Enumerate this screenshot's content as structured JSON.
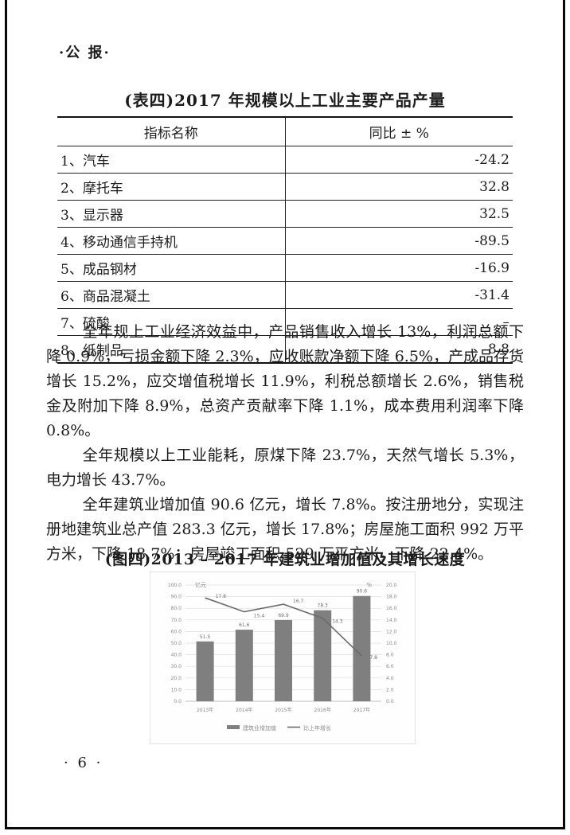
{
  "page": {
    "masthead": "·公 报·",
    "page_number": "· 6 ·"
  },
  "table": {
    "title": "(表四)2017 年规模以上工业主要产品产量",
    "columns": [
      "指标名称",
      "同比 ± %"
    ],
    "rows": [
      {
        "name": "1、汽车",
        "value": "-24.2"
      },
      {
        "name": "2、摩托车",
        "value": "32.8"
      },
      {
        "name": "3、显示器",
        "value": "32.5"
      },
      {
        "name": "4、移动通信手持机",
        "value": "-89.5"
      },
      {
        "name": "5、成品钢材",
        "value": "-16.9"
      },
      {
        "name": "6、商品混凝土",
        "value": "-31.4"
      },
      {
        "name": "7、硫酸",
        "value": "–"
      },
      {
        "name": "8、纸制品",
        "value": "8.8"
      }
    ]
  },
  "paragraphs": [
    "全年规上工业经济效益中，产品销售收入增长 13%，利润总额下降 0.9%，亏损金额下降 2.3%，应收账款净额下降 6.5%，产成品存货增长 15.2%，应交增值税增长 11.9%，利税总额增长 2.6%，销售税金及附加下降 8.9%，总资产贡献率下降 1.1%，成本费用利润率下降 0.8%。",
    "全年规模以上工业能耗，原煤下降 23.7%，天然气增长 5.3%，电力增长 43.7%。",
    "全年建筑业增加值 90.6 亿元，增长 7.8%。按注册地分，实现注册地建筑业总产值 283.3 亿元，增长 17.8%；房屋施工面积 992 万平方米，下降 18.7%；房屋竣工面积 529 万平方米，下降 22.4%。"
  ],
  "figure": {
    "caption": "(图四)2013 – 2017 年建筑业增加值及其增长速度"
  },
  "chart_data": {
    "type": "bar",
    "subtype": "bar+line-dual-axis",
    "title": "(图四)2013 – 2017 年建筑业增加值及其增长速度",
    "categories": [
      "2013年",
      "2014年",
      "2015年",
      "2016年",
      "2017年"
    ],
    "series": [
      {
        "name": "建筑业增加值",
        "type": "bar",
        "axis": "left",
        "values": [
          51.5,
          61.6,
          69.9,
          78.3,
          90.6
        ]
      },
      {
        "name": "比上年增长",
        "type": "line",
        "axis": "right",
        "values": [
          17.8,
          15.4,
          16.7,
          14.3,
          7.8
        ]
      }
    ],
    "left_axis": {
      "title": "亿元",
      "min": 0,
      "max": 100,
      "step": 10
    },
    "right_axis": {
      "title": "%",
      "min": 0,
      "max": 20,
      "step": 2
    },
    "grid": true,
    "legend_position": "bottom",
    "colors": {
      "bar": "#7f7f7f",
      "line": "#6b6b6b",
      "grid": "#dcdcdc",
      "text": "#8a8a8a"
    }
  }
}
